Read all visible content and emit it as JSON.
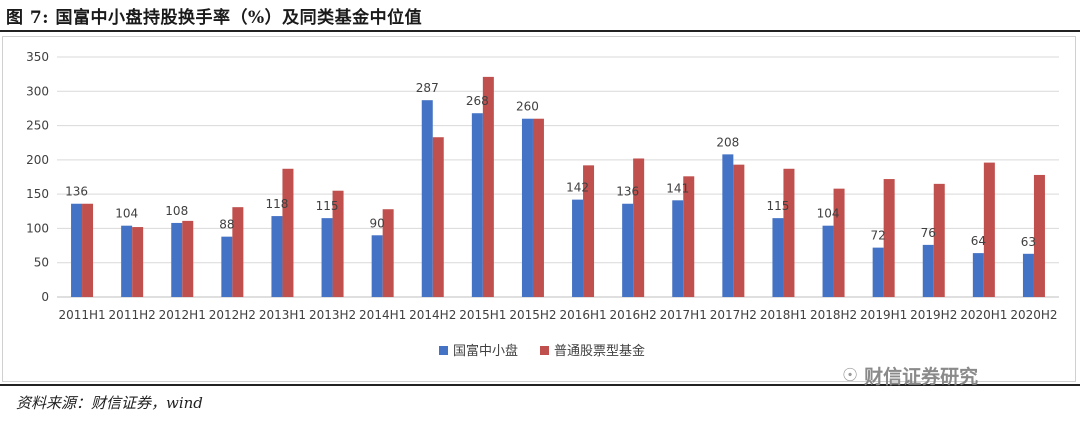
{
  "title": "图 7:  国富中小盘持股换手率（%）及同类基金中位值",
  "source": "资料来源：财信证券，wind",
  "watermark": {
    "text": "财信证券研究",
    "icon": "wechat-icon"
  },
  "chart_data": {
    "type": "bar",
    "categories": [
      "2011H1",
      "2011H2",
      "2012H1",
      "2012H2",
      "2013H1",
      "2013H2",
      "2014H1",
      "2014H2",
      "2015H1",
      "2015H2",
      "2016H1",
      "2016H2",
      "2017H1",
      "2017H2",
      "2018H1",
      "2018H2",
      "2019H1",
      "2019H2",
      "2020H1",
      "2020H2"
    ],
    "series": [
      {
        "name": "国富中小盘",
        "color": "#4472C4",
        "values": [
          136,
          104,
          108,
          88,
          118,
          115,
          90,
          287,
          268,
          260,
          142,
          136,
          141,
          208,
          115,
          104,
          72,
          76,
          64,
          63
        ],
        "labels": [
          "136",
          "104",
          "108",
          "88",
          "118",
          "115",
          "90",
          "287",
          "268",
          "260",
          "142",
          "136",
          "141",
          "208",
          "115",
          "104",
          "72",
          "76",
          "64",
          "63"
        ]
      },
      {
        "name": "普通股票型基金",
        "color": "#C0504D",
        "values": [
          136,
          102,
          111,
          131,
          187,
          155,
          128,
          233,
          321,
          260,
          192,
          202,
          176,
          193,
          187,
          158,
          172,
          165,
          196,
          178
        ]
      }
    ],
    "ylim": [
      0,
      350
    ],
    "yticks": [
      0,
      50,
      100,
      150,
      200,
      250,
      300,
      350
    ],
    "ytick_labels": [
      "0",
      "50",
      "100",
      "150",
      "200",
      "250",
      "300",
      "350"
    ],
    "grid": true,
    "legend": "bottom"
  }
}
